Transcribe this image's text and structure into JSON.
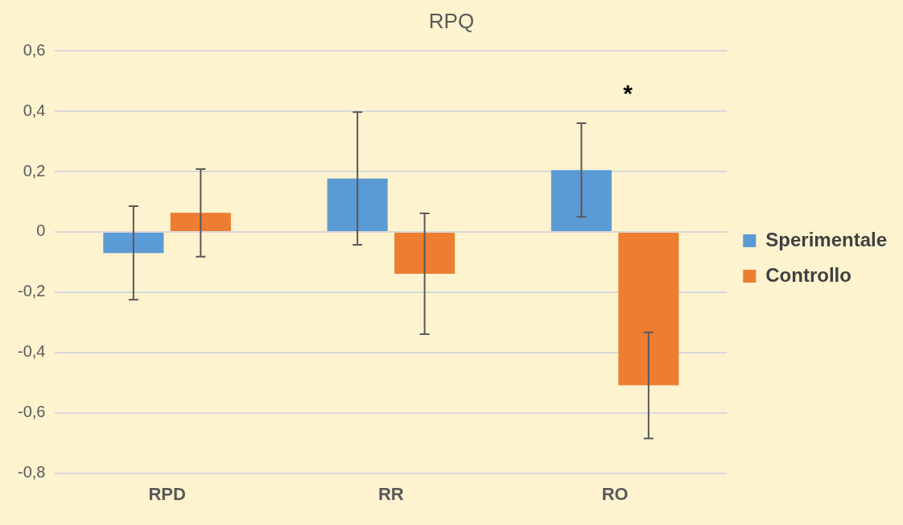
{
  "chart_data": {
    "type": "bar",
    "title": "RPQ",
    "categories": [
      "RPD",
      "RR",
      "RO"
    ],
    "series": [
      {
        "name": "Sperimentale",
        "color": "#5b9bd5",
        "values": [
          -0.07,
          0.177,
          0.205
        ],
        "errors": [
          0.155,
          0.22,
          0.155
        ]
      },
      {
        "name": "Controllo",
        "color": "#ed7d31",
        "values": [
          0.063,
          -0.139,
          -0.509
        ],
        "errors": [
          0.145,
          0.2,
          0.176
        ]
      }
    ],
    "ylim": [
      -0.8,
      0.6
    ],
    "yticks": [
      {
        "value": -0.8,
        "label": "-0,8"
      },
      {
        "value": -0.6,
        "label": "-0,6"
      },
      {
        "value": -0.4,
        "label": "-0,4"
      },
      {
        "value": -0.2,
        "label": "-0,2"
      },
      0,
      {
        "value": 0.2,
        "label": "0,2"
      },
      {
        "value": 0.4,
        "label": "0,4"
      },
      {
        "value": 0.6,
        "label": "0,6"
      }
    ],
    "grid": "y",
    "legend": "right",
    "annotations": [
      "*"
    ]
  }
}
